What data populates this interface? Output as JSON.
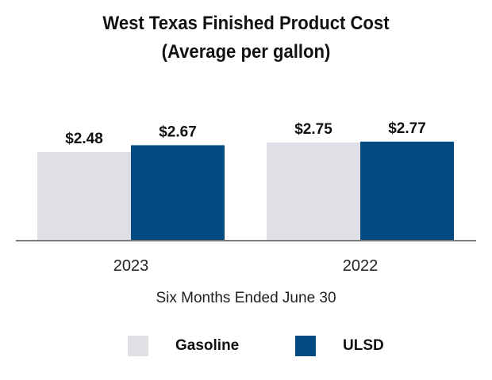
{
  "chart_data": {
    "type": "bar",
    "title": "West Texas Finished Product Cost",
    "subtitle": "(Average per gallon)",
    "xlabel": "Six Months Ended June 30",
    "ylabel": "",
    "categories": [
      "2023",
      "2022"
    ],
    "series": [
      {
        "name": "Gasoline",
        "values": [
          2.48,
          2.75
        ],
        "labels": [
          "$2.48",
          "$2.75"
        ],
        "color": "#dfe0e6"
      },
      {
        "name": "ULSD",
        "values": [
          2.67,
          2.77
        ],
        "labels": [
          "$2.67",
          "$2.77"
        ],
        "color": "#014b80"
      }
    ],
    "ylim": [
      0,
      2.9
    ],
    "grid": false,
    "legend": "bottom"
  }
}
